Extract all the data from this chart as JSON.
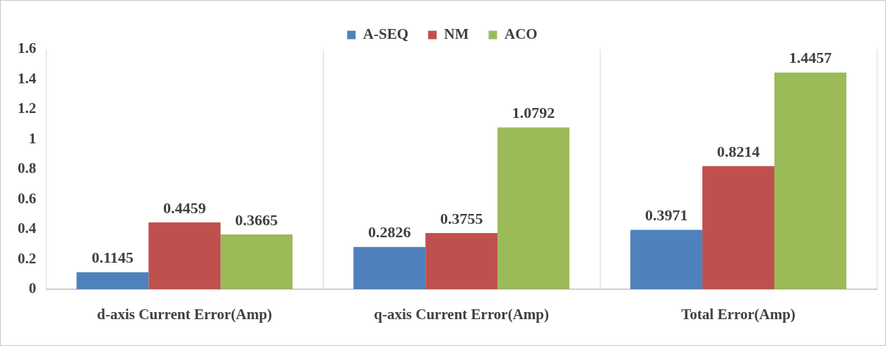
{
  "chart_data": {
    "type": "bar",
    "categories": [
      "d-axis Current Error(Amp)",
      "q-axis Current Error(Amp)",
      "Total Error(Amp)"
    ],
    "series": [
      {
        "name": "A-SEQ",
        "color": "#4f81bd",
        "values": [
          0.1145,
          0.2826,
          0.3971
        ]
      },
      {
        "name": "NM",
        "color": "#c0504d",
        "values": [
          0.4459,
          0.3755,
          0.8214
        ]
      },
      {
        "name": "ACO",
        "color": "#9bbb59",
        "values": [
          0.3665,
          1.0792,
          1.4457
        ]
      }
    ],
    "ylim": [
      0,
      1.6
    ],
    "yticks": [
      0,
      0.2,
      0.4,
      0.6,
      0.8,
      1,
      1.2,
      1.4,
      1.6
    ],
    "grid": "x",
    "legend": "top",
    "data_labels": true
  }
}
